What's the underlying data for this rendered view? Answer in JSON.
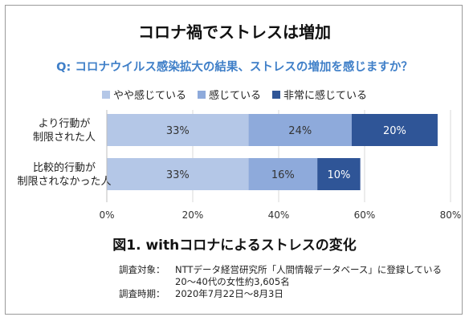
{
  "title": "コロナ禍でストレスは増加",
  "question": "Q: コロナウイルス感染拡大の結果、ストレスの増加を感じますか？",
  "caption": "図1. withコロナによるストレスの変化",
  "notes": {
    "target_label": "調査対象：",
    "target_line1": "NTTデータ経営研究所「人間情報データベース」に登録している",
    "target_line2": "20～40代の女性約3,605名",
    "period_label": "調査時期：",
    "period_value": "2020年7月22日～8月3日"
  },
  "chart_data": {
    "type": "bar",
    "orientation": "horizontal",
    "stacked": true,
    "categories": [
      [
        "より行動が",
        "制限された人"
      ],
      [
        "比較的行動が",
        "制限されなかった人"
      ]
    ],
    "series": [
      {
        "name": "やや感じている",
        "values": [
          33,
          33
        ],
        "labels": [
          "33%",
          "33%"
        ],
        "color": "#b4c7e7",
        "label_color": "#333333"
      },
      {
        "name": "感じている",
        "values": [
          24,
          16
        ],
        "labels": [
          "24%",
          "16%"
        ],
        "color": "#8eaadb",
        "label_color": "#333333"
      },
      {
        "name": "非常に感じている",
        "values": [
          20,
          10
        ],
        "labels": [
          "20%",
          "10%"
        ],
        "color": "#2f5597",
        "label_color": "#ffffff"
      }
    ],
    "xlim": [
      0,
      80
    ],
    "xticks": [
      0,
      20,
      40,
      60,
      80
    ],
    "xtick_labels": [
      "0%",
      "20%",
      "40%",
      "60%",
      "80%"
    ],
    "grid": true,
    "gridline_color": "#d9d9d9",
    "legend_position": "top"
  }
}
